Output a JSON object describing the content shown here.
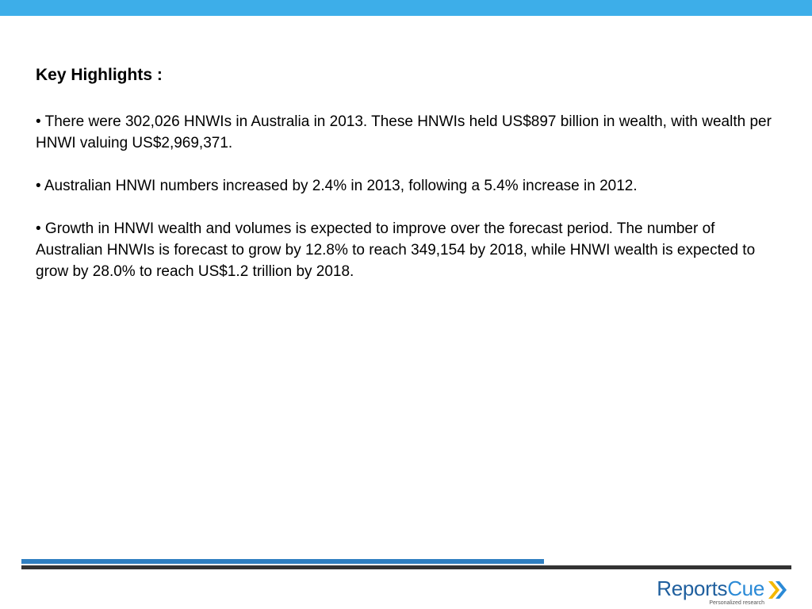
{
  "slide": {
    "heading": "Key Highlights :",
    "bullets": [
      "• There were 302,026 HNWIs in Australia in 2013. These HNWIs held US$897 billion in wealth, with wealth per HNWI valuing US$2,969,371.",
      "• Australian HNWI numbers increased by 2.4% in 2013, following a 5.4% increase in 2012.",
      "• Growth in HNWI wealth and volumes is expected to improve over the forecast period. The number of Australian HNWIs is forecast to grow by 12.8% to reach 349,154 by 2018, while HNWI wealth is expected to grow by 28.0% to reach US$1.2 trillion by 2018."
    ]
  },
  "logo": {
    "name_part1": "Reports",
    "name_part2": "Cue",
    "tagline": "Personalized research",
    "icon": "double-chevron-right-icon"
  },
  "colors": {
    "top_bar": "#3daee9",
    "footer_blue": "#2f7fc1",
    "footer_gray": "#333333",
    "chevron_yellow": "#f5b800",
    "chevron_blue": "#2b8ad6"
  }
}
